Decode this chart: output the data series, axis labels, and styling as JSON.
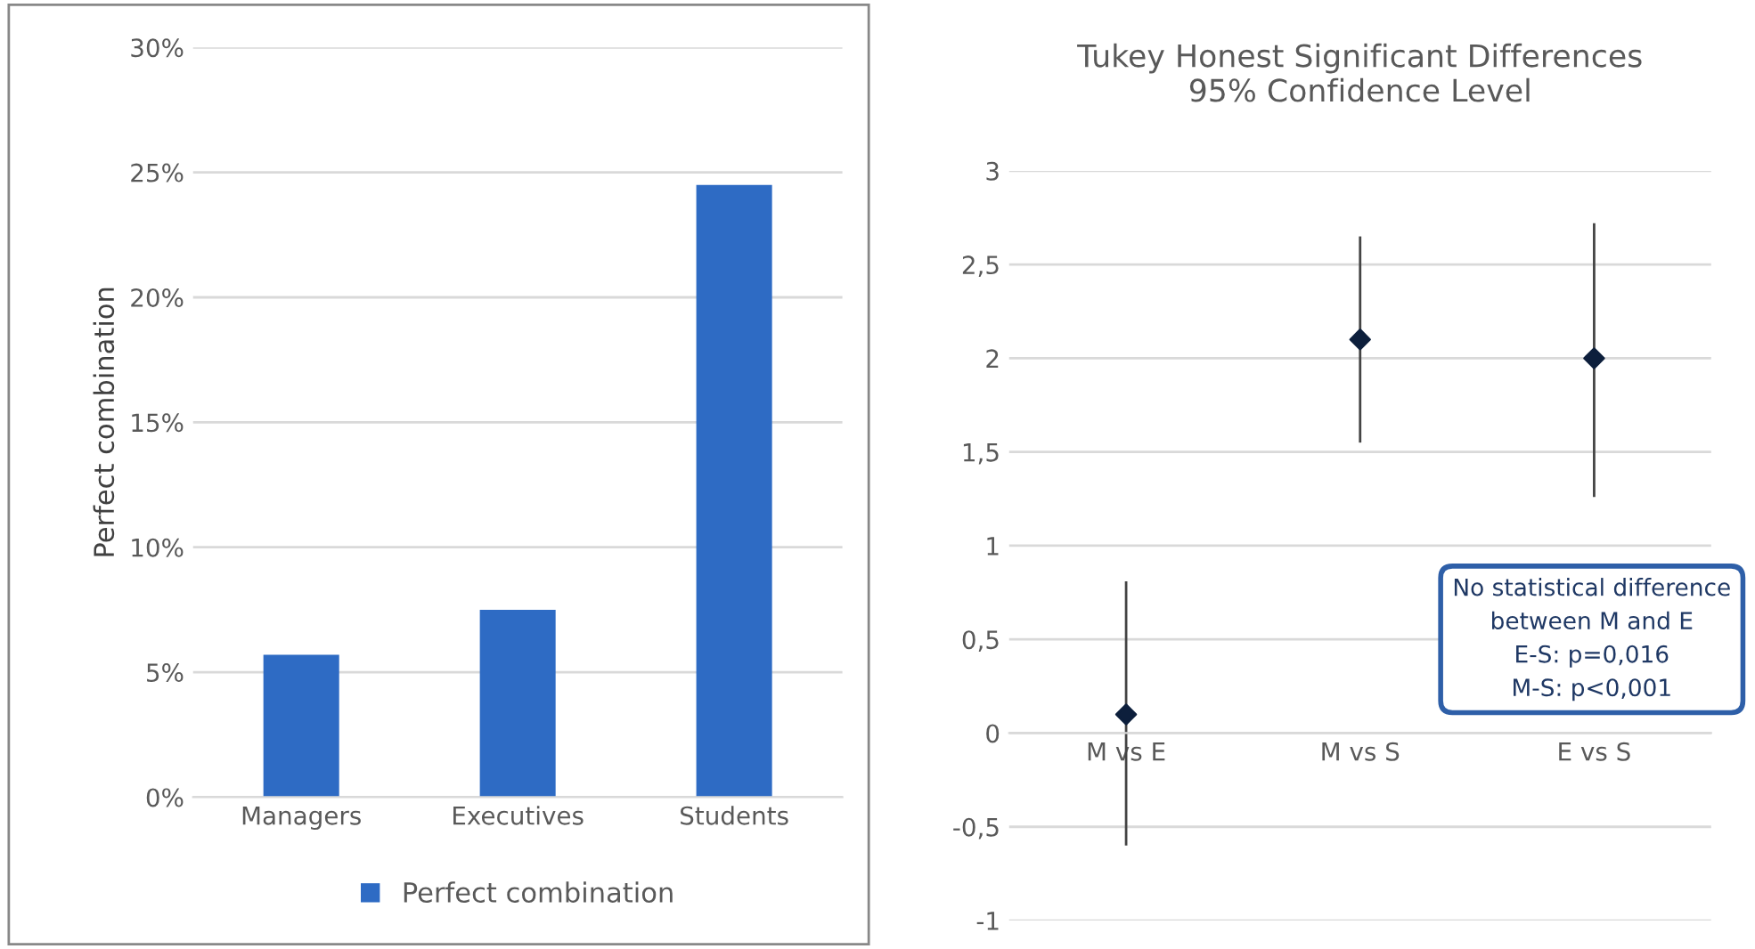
{
  "chart_data": [
    {
      "type": "bar",
      "ylabel": "Perfect combination",
      "categories": [
        "Managers",
        "Executives",
        "Students"
      ],
      "series": [
        {
          "name": "Perfect combination",
          "color": "#2e6bc4",
          "values": [
            5.7,
            7.5,
            24.5
          ]
        }
      ],
      "ylim": [
        0,
        30
      ],
      "yticks": [
        {
          "value": 0,
          "label": "0%"
        },
        {
          "value": 5,
          "label": "5%"
        },
        {
          "value": 10,
          "label": "10%"
        },
        {
          "value": 15,
          "label": "15%"
        },
        {
          "value": 20,
          "label": "20%"
        },
        {
          "value": 25,
          "label": "25%"
        },
        {
          "value": 30,
          "label": "30%"
        }
      ],
      "grid": "y",
      "legend": "bottom"
    },
    {
      "type": "scatter",
      "title": "Tukey Honest Significant Differences\n95% Confidence Level",
      "categories": [
        "M vs E",
        "M vs S",
        "E vs S"
      ],
      "series": [
        {
          "color": "#0d1f3c",
          "values": [
            0.1,
            2.1,
            2.0
          ],
          "errors": [
            [
              -0.6,
              0.81
            ],
            [
              1.55,
              2.65
            ],
            [
              1.26,
              2.72
            ]
          ]
        }
      ],
      "ylim": [
        -1,
        3
      ],
      "yticks": [
        {
          "value": -1,
          "label": "-1"
        },
        {
          "value": -0.5,
          "label": "-0,5"
        },
        {
          "value": 0,
          "label": "0"
        },
        {
          "value": 0.5,
          "label": "0,5"
        },
        {
          "value": 1,
          "label": "1"
        },
        {
          "value": 1.5,
          "label": "1,5"
        },
        {
          "value": 2,
          "label": "2"
        },
        {
          "value": 2.5,
          "label": "2,5"
        },
        {
          "value": 3,
          "label": "3"
        }
      ],
      "grid": "y",
      "marker": "diamond",
      "annotations": [
        "No statistical difference\nbetween M and E\nE-S: p=0,016\nM-S: p<0,001"
      ]
    }
  ]
}
